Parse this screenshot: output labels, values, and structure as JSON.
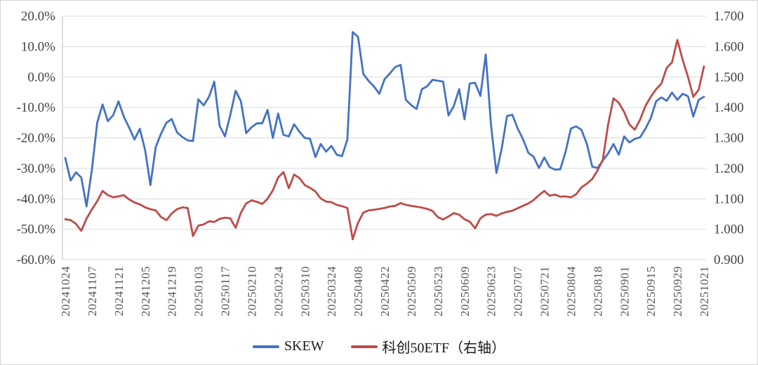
{
  "chart_data": {
    "type": "line",
    "title": "",
    "grid": "horizontal",
    "legend_position": "bottom",
    "left_axis": {
      "format": "percent",
      "min": -60,
      "max": 20,
      "step": 10,
      "tick_labels": [
        "20.0%",
        "10.0%",
        "0.0%",
        "-10.0%",
        "-20.0%",
        "-30.0%",
        "-40.0%",
        "-50.0%",
        "-60.0%"
      ]
    },
    "right_axis": {
      "format": "decimal",
      "min": 0.9,
      "max": 1.7,
      "step": 0.1,
      "tick_labels": [
        "1.700",
        "1.600",
        "1.500",
        "1.400",
        "1.300",
        "1.200",
        "1.100",
        "1.000",
        "0.900"
      ]
    },
    "x_tick_labels": [
      "20241024",
      "20241107",
      "20241121",
      "20241205",
      "20241219",
      "20250103",
      "20250117",
      "20250210",
      "20250224",
      "20250310",
      "20250324",
      "20250408",
      "20250422",
      "20250509",
      "20250523",
      "20250609",
      "20250623",
      "20250707",
      "20250721",
      "20250804",
      "20250818",
      "20250901",
      "20250915",
      "20250929",
      "20251021"
    ],
    "points_per_tick_interval": 5,
    "series": [
      {
        "name": "SKEW",
        "axis": "left",
        "color": "#4472C4",
        "values": [
          -26.6,
          -34.0,
          -31.3,
          -33.0,
          -42.5,
          -30.5,
          -15.0,
          -9.0,
          -14.5,
          -12.5,
          -8.0,
          -13.0,
          -16.6,
          -20.5,
          -17.0,
          -24.0,
          -35.5,
          -23.0,
          -18.6,
          -15.0,
          -13.8,
          -18.2,
          -19.7,
          -20.8,
          -21.0,
          -7.3,
          -9.3,
          -6.5,
          -1.5,
          -16.0,
          -19.5,
          -12.5,
          -4.5,
          -8.0,
          -18.4,
          -16.5,
          -15.2,
          -15.2,
          -10.8,
          -20.0,
          -12.0,
          -19.0,
          -19.5,
          -15.5,
          -18.0,
          -20.0,
          -20.3,
          -26.3,
          -22.0,
          -24.5,
          -22.6,
          -25.5,
          -26.0,
          -20.5,
          14.8,
          13.2,
          1.0,
          -1.3,
          -3.1,
          -5.5,
          -0.7,
          1.2,
          3.3,
          4.0,
          -7.5,
          -9.2,
          -10.5,
          -4.0,
          -3.0,
          -0.9,
          -1.2,
          -1.5,
          -12.6,
          -9.5,
          -4.0,
          -13.9,
          -2.1,
          -1.9,
          -6.2,
          7.4,
          -16.0,
          -31.5,
          -23.5,
          -12.8,
          -12.4,
          -16.9,
          -20.4,
          -24.9,
          -26.2,
          -29.9,
          -26.4,
          -29.6,
          -30.4,
          -30.3,
          -24.6,
          -16.9,
          -16.2,
          -17.4,
          -22.0,
          -29.4,
          -29.9,
          -27.4,
          -25.1,
          -22.0,
          -25.5,
          -19.5,
          -21.5,
          -20.3,
          -19.8,
          -17.0,
          -13.5,
          -8.0,
          -6.7,
          -7.8,
          -5.1,
          -7.5,
          -5.5,
          -6.3,
          -13.0,
          -7.5,
          -6.5
        ]
      },
      {
        "name": "科创50ETF（右轴）",
        "axis": "right",
        "color": "#BE4B48",
        "values": [
          1.033,
          1.03,
          1.018,
          0.995,
          1.035,
          1.065,
          1.092,
          1.126,
          1.112,
          1.105,
          1.108,
          1.112,
          1.098,
          1.088,
          1.082,
          1.072,
          1.066,
          1.062,
          1.04,
          1.03,
          1.052,
          1.066,
          1.072,
          1.07,
          0.978,
          1.012,
          1.016,
          1.026,
          1.024,
          1.034,
          1.038,
          1.036,
          1.005,
          1.055,
          1.085,
          1.095,
          1.09,
          1.083,
          1.1,
          1.128,
          1.17,
          1.188,
          1.135,
          1.18,
          1.168,
          1.145,
          1.136,
          1.124,
          1.101,
          1.091,
          1.089,
          1.08,
          1.076,
          1.07,
          0.967,
          1.021,
          1.055,
          1.062,
          1.064,
          1.067,
          1.07,
          1.075,
          1.077,
          1.086,
          1.08,
          1.077,
          1.074,
          1.071,
          1.067,
          1.06,
          1.04,
          1.032,
          1.042,
          1.053,
          1.048,
          1.033,
          1.025,
          1.003,
          1.036,
          1.048,
          1.05,
          1.044,
          1.052,
          1.057,
          1.061,
          1.069,
          1.077,
          1.085,
          1.096,
          1.112,
          1.126,
          1.11,
          1.114,
          1.107,
          1.108,
          1.105,
          1.115,
          1.138,
          1.15,
          1.165,
          1.193,
          1.228,
          1.345,
          1.43,
          1.415,
          1.385,
          1.344,
          1.327,
          1.36,
          1.405,
          1.435,
          1.46,
          1.478,
          1.53,
          1.548,
          1.622,
          1.556,
          1.5,
          1.435,
          1.458,
          1.535
        ]
      }
    ]
  },
  "legend": {
    "skew_label": "SKEW",
    "etf_label": "科创50ETF（右轴）"
  },
  "colors": {
    "skew": "#4472C4",
    "etf": "#BE4B48",
    "gridline": "#d9d9d9",
    "axis_text": "#404040",
    "date_text": "#595959"
  }
}
